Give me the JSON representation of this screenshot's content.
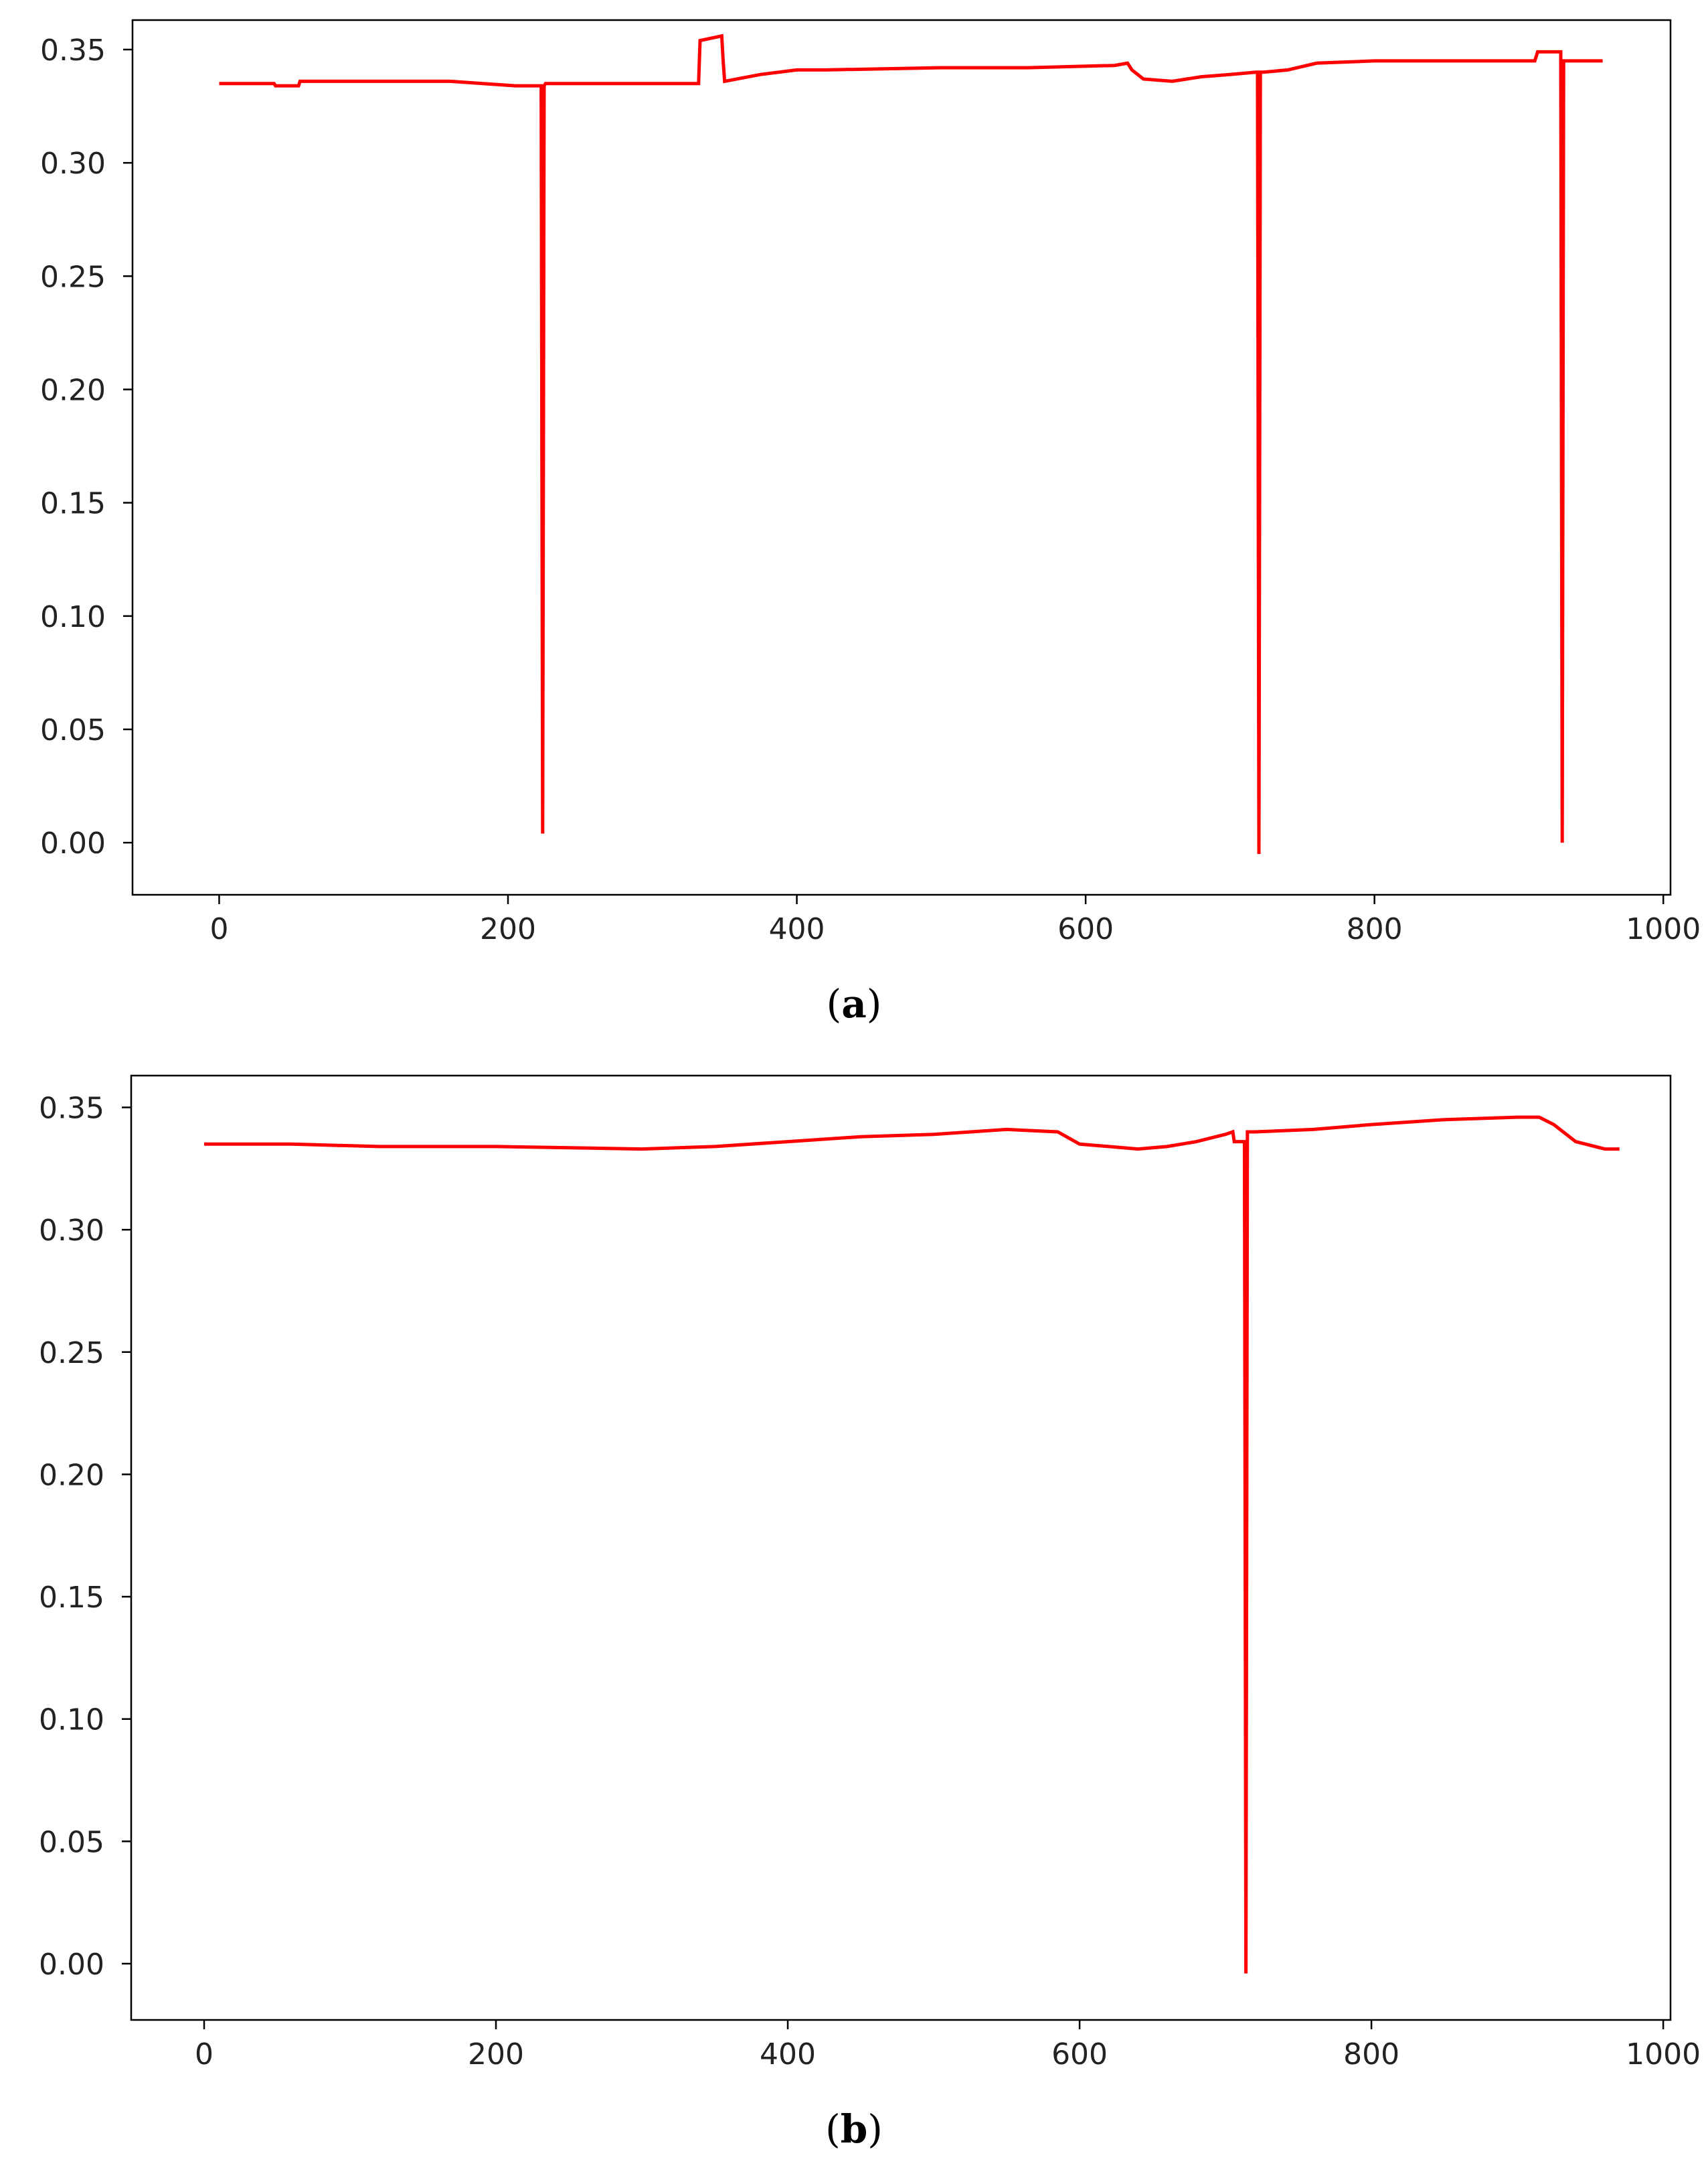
{
  "chart_data": [
    {
      "type": "line",
      "panel_label": "a",
      "color": "#ff0000",
      "xlim": [
        -60,
        1005
      ],
      "ylim": [
        -0.023,
        0.363
      ],
      "x_ticks": [
        0,
        200,
        400,
        600,
        800,
        1000
      ],
      "y_ticks": [
        0.0,
        0.05,
        0.1,
        0.15,
        0.2,
        0.25,
        0.3,
        0.35
      ],
      "x_tick_labels": [
        "0",
        "200",
        "400",
        "600",
        "800",
        "1000"
      ],
      "y_tick_labels": [
        "0.00",
        "0.05",
        "0.10",
        "0.15",
        "0.20",
        "0.25",
        "0.30",
        "0.35"
      ],
      "grid": false,
      "series": [
        {
          "x": [
            0,
            38,
            39,
            55,
            56,
            100,
            160,
            205,
            206,
            223,
            224,
            225,
            226,
            227,
            260,
            331,
            332,
            333,
            348,
            349,
            350,
            375,
            400,
            420,
            500,
            530,
            560,
            620,
            629,
            632,
            640,
            660,
            680,
            700,
            718,
            719,
            720,
            721,
            722,
            723,
            740,
            760,
            800,
            850,
            911,
            913,
            928,
            929,
            930,
            931,
            932,
            958
          ],
          "y": [
            0.335,
            0.335,
            0.334,
            0.334,
            0.336,
            0.336,
            0.336,
            0.334,
            0.334,
            0.334,
            0.004,
            0.334,
            0.335,
            0.335,
            0.335,
            0.335,
            0.335,
            0.354,
            0.356,
            0.345,
            0.336,
            0.339,
            0.341,
            0.341,
            0.342,
            0.342,
            0.342,
            0.343,
            0.344,
            0.341,
            0.337,
            0.336,
            0.338,
            0.339,
            0.34,
            0.34,
            -0.005,
            0.34,
            0.34,
            0.34,
            0.341,
            0.344,
            0.345,
            0.345,
            0.345,
            0.349,
            0.349,
            0.349,
            0.0,
            0.345,
            0.345,
            0.345
          ]
        }
      ]
    },
    {
      "type": "line",
      "panel_label": "b",
      "color": "#ff0000",
      "xlim": [
        -50,
        1005
      ],
      "ylim": [
        -0.023,
        0.363
      ],
      "x_ticks": [
        0,
        200,
        400,
        600,
        800,
        1000
      ],
      "y_ticks": [
        0.0,
        0.05,
        0.1,
        0.15,
        0.2,
        0.25,
        0.3,
        0.35
      ],
      "x_tick_labels": [
        "0",
        "200",
        "400",
        "600",
        "800",
        "1000"
      ],
      "y_tick_labels": [
        "0.00",
        "0.05",
        "0.10",
        "0.15",
        "0.20",
        "0.25",
        "0.30",
        "0.35"
      ],
      "grid": false,
      "series": [
        {
          "x": [
            0,
            60,
            120,
            200,
            300,
            350,
            400,
            450,
            500,
            550,
            585,
            600,
            620,
            640,
            660,
            680,
            700,
            705,
            706,
            712,
            713,
            714,
            715,
            716,
            720,
            760,
            800,
            850,
            900,
            915,
            925,
            940,
            960,
            970
          ],
          "y": [
            0.335,
            0.335,
            0.334,
            0.334,
            0.333,
            0.334,
            0.336,
            0.338,
            0.339,
            0.341,
            0.34,
            0.335,
            0.334,
            0.333,
            0.334,
            0.336,
            0.339,
            0.34,
            0.336,
            0.336,
            0.336,
            -0.004,
            0.34,
            0.34,
            0.34,
            0.341,
            0.343,
            0.345,
            0.346,
            0.346,
            0.343,
            0.336,
            0.333,
            0.333
          ]
        }
      ]
    }
  ]
}
